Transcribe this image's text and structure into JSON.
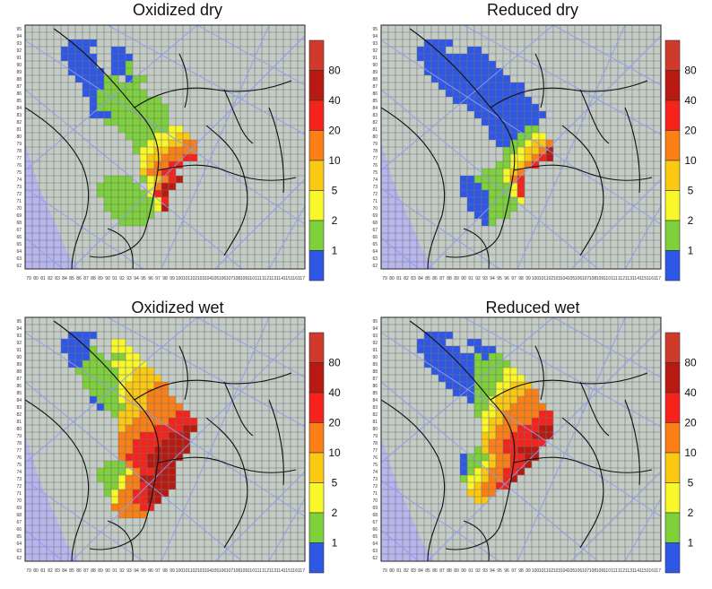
{
  "legend": {
    "labels": [
      "80",
      "40",
      "20",
      "10",
      "5",
      "2",
      "1"
    ],
    "colors": [
      "#b81a12",
      "#f5231b",
      "#fb7f15",
      "#fbc812",
      "#f7f72a",
      "#7ed13b",
      "#2f57e6",
      "#cf3a2a",
      "#35a832"
    ]
  },
  "map_style": {
    "land": "#c4ccc6",
    "sea": "#b8b6ee",
    "grid": "#737373",
    "coast": "#111111",
    "meridians": "#8c9cf0"
  },
  "panels": [
    {
      "title": "Oxidized dry",
      "x_ticks": [
        "79",
        "80",
        "81",
        "82",
        "83",
        "84",
        "85",
        "86",
        "87",
        "88",
        "89",
        "90",
        "91",
        "92",
        "93",
        "94",
        "95",
        "96",
        "97",
        "98",
        "99",
        "100",
        "101",
        "102",
        "103",
        "104",
        "105",
        "106",
        "107",
        "108",
        "109",
        "110",
        "111",
        "112",
        "113",
        "114",
        "115",
        "116",
        "117"
      ],
      "y_ticks": [
        "95",
        "94",
        "93",
        "92",
        "91",
        "90",
        "89",
        "88",
        "87",
        "86",
        "85",
        "84",
        "83",
        "82",
        "81",
        "80",
        "79",
        "78",
        "77",
        "76",
        "75",
        "74",
        "73",
        "72",
        "71",
        "70",
        "69",
        "68",
        "67",
        "66",
        "65",
        "64",
        "63",
        "62"
      ]
    },
    {
      "title": "Reduced dry",
      "x_ticks": [
        "79",
        "80",
        "81",
        "82",
        "83",
        "84",
        "85",
        "86",
        "87",
        "88",
        "89",
        "90",
        "91",
        "92",
        "93",
        "94",
        "95",
        "96",
        "97",
        "98",
        "99",
        "100",
        "101",
        "102",
        "103",
        "104",
        "105",
        "106",
        "107",
        "108",
        "109",
        "110",
        "111",
        "112",
        "113",
        "114",
        "115",
        "116",
        "117"
      ],
      "y_ticks": [
        "95",
        "94",
        "93",
        "92",
        "91",
        "90",
        "89",
        "88",
        "87",
        "86",
        "85",
        "84",
        "83",
        "82",
        "81",
        "80",
        "79",
        "78",
        "77",
        "76",
        "75",
        "74",
        "73",
        "72",
        "71",
        "70",
        "69",
        "68",
        "67",
        "66",
        "65",
        "64",
        "63",
        "62"
      ]
    },
    {
      "title": "Oxidized wet",
      "x_ticks": [
        "79",
        "80",
        "81",
        "82",
        "83",
        "84",
        "85",
        "86",
        "87",
        "88",
        "89",
        "90",
        "91",
        "92",
        "93",
        "94",
        "95",
        "96",
        "97",
        "98",
        "99",
        "100",
        "101",
        "102",
        "103",
        "104",
        "105",
        "106",
        "107",
        "108",
        "109",
        "110",
        "111",
        "112",
        "113",
        "114",
        "115",
        "116",
        "117"
      ],
      "y_ticks": [
        "95",
        "94",
        "93",
        "92",
        "91",
        "90",
        "89",
        "88",
        "87",
        "86",
        "85",
        "84",
        "83",
        "82",
        "81",
        "80",
        "79",
        "78",
        "77",
        "76",
        "75",
        "74",
        "73",
        "72",
        "71",
        "70",
        "69",
        "68",
        "67",
        "66",
        "65",
        "64",
        "63",
        "62"
      ]
    },
    {
      "title": "Reduced wet",
      "x_ticks": [
        "79",
        "80",
        "81",
        "82",
        "83",
        "84",
        "85",
        "86",
        "87",
        "88",
        "89",
        "90",
        "91",
        "92",
        "93",
        "94",
        "95",
        "96",
        "97",
        "98",
        "99",
        "100",
        "101",
        "102",
        "103",
        "104",
        "105",
        "106",
        "107",
        "108",
        "109",
        "110",
        "111",
        "112",
        "113",
        "114",
        "115",
        "116",
        "117"
      ],
      "y_ticks": [
        "95",
        "94",
        "93",
        "92",
        "91",
        "90",
        "89",
        "88",
        "87",
        "86",
        "85",
        "84",
        "83",
        "82",
        "81",
        "80",
        "79",
        "78",
        "77",
        "76",
        "75",
        "74",
        "73",
        "72",
        "71",
        "70",
        "69",
        "68",
        "67",
        "66",
        "65",
        "64",
        "63",
        "62"
      ]
    }
  ]
}
